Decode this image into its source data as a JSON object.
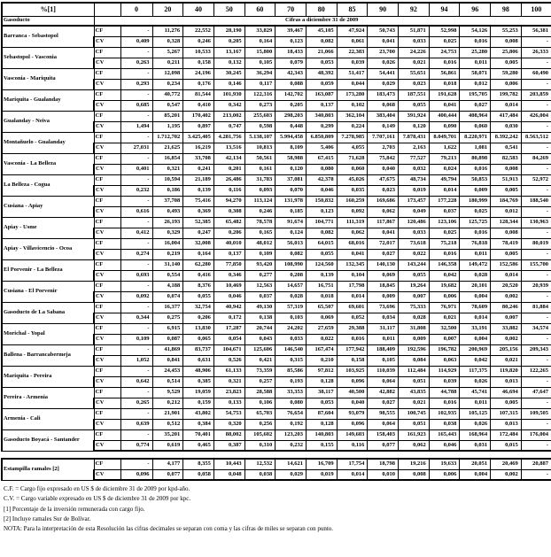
{
  "header": {
    "percent_label": "%[1]",
    "gasoducto_label": "Gasoducto",
    "cifras_label": "Cifras a diciembre 31 de 2009",
    "cf_label": "CF",
    "cv_label": "CV",
    "columns": [
      "0",
      "20",
      "40",
      "50",
      "60",
      "70",
      "80",
      "85",
      "90",
      "92",
      "94",
      "96",
      "98",
      "100"
    ]
  },
  "rows": [
    {
      "name": "Barranca - Sebastopol",
      "cf": [
        "-",
        "11,276",
        "22,552",
        "28,190",
        "33,829",
        "39,467",
        "45,105",
        "47,924",
        "50,743",
        "51,871",
        "52,998",
        "54,126",
        "55,253",
        "56,381"
      ],
      "cv": [
        "0,409",
        "0,328",
        "0,246",
        "0,205",
        "0,164",
        "0,123",
        "0,082",
        "0,061",
        "0,041",
        "0,033",
        "0,025",
        "0,016",
        "0,008",
        "-"
      ]
    },
    {
      "name": "Sebastopol - Vasconia",
      "cf": [
        "-",
        "5,267",
        "10,533",
        "13,167",
        "15,800",
        "18,433",
        "21,066",
        "22,383",
        "23,700",
        "24,226",
        "24,753",
        "25,280",
        "25,806",
        "26,333"
      ],
      "cv": [
        "0,263",
        "0,211",
        "0,158",
        "0,132",
        "0,105",
        "0,079",
        "0,053",
        "0,039",
        "0,026",
        "0,021",
        "0,016",
        "0,011",
        "0,005",
        "-"
      ]
    },
    {
      "name": "Vasconia - Mariquita",
      "cf": [
        "-",
        "12,098",
        "24,196",
        "30,245",
        "36,294",
        "42,343",
        "48,392",
        "51,417",
        "54,441",
        "55,651",
        "56,861",
        "58,071",
        "59,280",
        "60,490"
      ],
      "cv": [
        "0,293",
        "0,234",
        "0,176",
        "0,146",
        "0,117",
        "0,088",
        "0,059",
        "0,044",
        "0,029",
        "0,023",
        "0,018",
        "0,012",
        "0,006",
        "-"
      ]
    },
    {
      "name": "Mariquita - Gualanday",
      "cf": [
        "-",
        "40,772",
        "81,544",
        "101,930",
        "122,316",
        "142,702",
        "163,087",
        "173,280",
        "183,473",
        "187,551",
        "191,628",
        "195,705",
        "199,782",
        "203,859"
      ],
      "cv": [
        "0,685",
        "0,547",
        "0,410",
        "0,342",
        "0,273",
        "0,205",
        "0,137",
        "0,102",
        "0,068",
        "0,055",
        "0,041",
        "0,027",
        "0,014",
        "-"
      ]
    },
    {
      "name": "Gualanday - Neiva",
      "cf": [
        "-",
        "85,201",
        "170,402",
        "213,002",
        "255,603",
        "298,203",
        "340,803",
        "362,104",
        "383,404",
        "391,924",
        "400,444",
        "408,964",
        "417,484",
        "426,004"
      ],
      "cv": [
        "1,494",
        "1,195",
        "0,897",
        "0,747",
        "0,598",
        "0,448",
        "0,299",
        "0,224",
        "0,149",
        "0,120",
        "0,090",
        "0,060",
        "0,030",
        "-"
      ]
    },
    {
      "name": "Montañuelo - Gualanday",
      "cf": [
        "-",
        "1.712,702",
        "3.425,405",
        "4.281,756",
        "5.138,107",
        "5.994,458",
        "6.850,809",
        "7.278,985",
        "7.707,161",
        "7.878,431",
        "8.049,701",
        "8.220,971",
        "8.392,242",
        "8.563,512"
      ],
      "cv": [
        "27,031",
        "21,625",
        "16,219",
        "13,516",
        "10,813",
        "8,109",
        "5,406",
        "4,055",
        "2,703",
        "2,163",
        "1,622",
        "1,081",
        "0,541",
        "-"
      ]
    },
    {
      "name": "Vasconia - La Belleza",
      "cf": [
        "-",
        "16,854",
        "33,708",
        "42,134",
        "50,561",
        "58,988",
        "67,415",
        "71,628",
        "75,842",
        "77,527",
        "79,213",
        "80,898",
        "82,583",
        "84,269"
      ],
      "cv": [
        "0,401",
        "0,321",
        "0,241",
        "0,201",
        "0,161",
        "0,120",
        "0,080",
        "0,060",
        "0,040",
        "0,032",
        "0,024",
        "0,016",
        "0,008",
        "-"
      ]
    },
    {
      "name": "La Belleza - Cogua",
      "cf": [
        "-",
        "10,594",
        "21,189",
        "26,486",
        "31,783",
        "37,081",
        "42,378",
        "45,026",
        "47,675",
        "48,734",
        "49,794",
        "50,853",
        "51,913",
        "52,972"
      ],
      "cv": [
        "0,232",
        "0,186",
        "0,139",
        "0,116",
        "0,093",
        "0,070",
        "0,046",
        "0,035",
        "0,023",
        "0,019",
        "0,014",
        "0,009",
        "0,005",
        "-"
      ]
    },
    {
      "name": "Cusiana - Apiay",
      "cf": [
        "-",
        "37,708",
        "75,416",
        "94,270",
        "113,124",
        "131,978",
        "150,832",
        "160,259",
        "169,686",
        "173,457",
        "177,228",
        "180,999",
        "184,769",
        "188,540"
      ],
      "cv": [
        "0,616",
        "0,493",
        "0,369",
        "0,308",
        "0,246",
        "0,185",
        "0,123",
        "0,092",
        "0,062",
        "0,049",
        "0,037",
        "0,025",
        "0,012",
        "-"
      ]
    },
    {
      "name": "Apiay - Usme",
      "cf": [
        "-",
        "26,193",
        "52,385",
        "65,482",
        "78,578",
        "91,674",
        "104,771",
        "111,319",
        "117,867",
        "120,486",
        "123,106",
        "125,725",
        "128,344",
        "130,963"
      ],
      "cv": [
        "0,412",
        "0,329",
        "0,247",
        "0,206",
        "0,165",
        "0,124",
        "0,082",
        "0,062",
        "0,041",
        "0,033",
        "0,025",
        "0,016",
        "0,008",
        "-"
      ]
    },
    {
      "name": "Apiay - Villavicencio - Ocoa",
      "cf": [
        "-",
        "16,004",
        "32,008",
        "40,010",
        "48,012",
        "56,013",
        "64,015",
        "68,016",
        "72,017",
        "73,618",
        "75,218",
        "76,818",
        "78,419",
        "80,019"
      ],
      "cv": [
        "0,274",
        "0,219",
        "0,164",
        "0,137",
        "0,109",
        "0,082",
        "0,055",
        "0,041",
        "0,027",
        "0,022",
        "0,016",
        "0,011",
        "0,005",
        "-"
      ]
    },
    {
      "name": "El Porvenir - La Belleza",
      "cf": [
        "-",
        "31,140",
        "62,280",
        "77,850",
        "93,420",
        "108,990",
        "124,560",
        "132,345",
        "140,130",
        "143,244",
        "146,358",
        "149,472",
        "152,586",
        "155,700"
      ],
      "cv": [
        "0,693",
        "0,554",
        "0,416",
        "0,346",
        "0,277",
        "0,208",
        "0,139",
        "0,104",
        "0,069",
        "0,055",
        "0,042",
        "0,028",
        "0,014",
        "-"
      ]
    },
    {
      "name": "Cusiana - El Porvenir",
      "cf": [
        "-",
        "4,188",
        "8,376",
        "10,469",
        "12,563",
        "14,657",
        "16,751",
        "17,798",
        "18,845",
        "19,264",
        "19,682",
        "20,101",
        "20,520",
        "20,939"
      ],
      "cv": [
        "0,092",
        "0,074",
        "0,055",
        "0,046",
        "0,037",
        "0,028",
        "0,018",
        "0,014",
        "0,009",
        "0,007",
        "0,006",
        "0,004",
        "0,002",
        "-"
      ]
    },
    {
      "name": "Gasoducto de La Sabana",
      "cf": [
        "-",
        "16,377",
        "32,754",
        "40,942",
        "49,130",
        "57,319",
        "65,507",
        "69,601",
        "73,696",
        "75,333",
        "76,971",
        "78,609",
        "80,246",
        "81,884"
      ],
      "cv": [
        "0,344",
        "0,275",
        "0,206",
        "0,172",
        "0,138",
        "0,103",
        "0,069",
        "0,052",
        "0,034",
        "0,028",
        "0,021",
        "0,014",
        "0,007",
        "-"
      ]
    },
    {
      "name": "Morichal - Yopal",
      "cf": [
        "-",
        "6,915",
        "13,830",
        "17,287",
        "20,744",
        "24,202",
        "27,659",
        "29,388",
        "31,117",
        "31,808",
        "32,500",
        "33,191",
        "33,882",
        "34,574"
      ],
      "cv": [
        "0,109",
        "0,087",
        "0,065",
        "0,054",
        "0,043",
        "0,033",
        "0,022",
        "0,016",
        "0,011",
        "0,009",
        "0,007",
        "0,004",
        "0,002",
        "-"
      ]
    },
    {
      "name": "Ballena - Barrancabermeja",
      "cf": [
        "-",
        "41,869",
        "83,737",
        "104,671",
        "125,606",
        "146,540",
        "167,474",
        "177,942",
        "188,409",
        "192,596",
        "196,782",
        "200,969",
        "205,156",
        "209,343"
      ],
      "cv": [
        "1,052",
        "0,841",
        "0,631",
        "0,526",
        "0,421",
        "0,315",
        "0,210",
        "0,158",
        "0,105",
        "0,084",
        "0,063",
        "0,042",
        "0,021",
        "-"
      ]
    },
    {
      "name": "Mariquita - Pereira",
      "cf": [
        "-",
        "24,453",
        "48,906",
        "61,133",
        "73,359",
        "85,586",
        "97,812",
        "103,925",
        "110,039",
        "112,484",
        "114,929",
        "117,375",
        "119,820",
        "122,265"
      ],
      "cv": [
        "0,642",
        "0,514",
        "0,385",
        "0,321",
        "0,257",
        "0,193",
        "0,128",
        "0,096",
        "0,064",
        "0,051",
        "0,039",
        "0,026",
        "0,013",
        "-"
      ]
    },
    {
      "name": "Pereira - Armenia",
      "cf": [
        "-",
        "9,529",
        "19,059",
        "23,823",
        "28,588",
        "33,353",
        "38,117",
        "40,500",
        "42,882",
        "43,835",
        "44,788",
        "45,741",
        "46,694",
        "47,647"
      ],
      "cv": [
        "0,265",
        "0,212",
        "0,159",
        "0,133",
        "0,106",
        "0,080",
        "0,053",
        "0,040",
        "0,027",
        "0,021",
        "0,016",
        "0,011",
        "0,005",
        "-"
      ]
    },
    {
      "name": "Armenia - Cali",
      "cf": [
        "-",
        "21,901",
        "43,802",
        "54,753",
        "65,703",
        "76,654",
        "87,604",
        "93,079",
        "98,555",
        "100,745",
        "102,935",
        "105,125",
        "107,315",
        "109,505"
      ],
      "cv": [
        "0,639",
        "0,512",
        "0,384",
        "0,320",
        "0,256",
        "0,192",
        "0,128",
        "0,096",
        "0,064",
        "0,051",
        "0,038",
        "0,026",
        "0,013",
        "-"
      ]
    },
    {
      "name": "Gasoducto Boyacá - Santander",
      "cf": [
        "-",
        "35,201",
        "70,401",
        "88,002",
        "105,602",
        "123,203",
        "140,803",
        "149,603",
        "158,403",
        "161,923",
        "165,443",
        "168,964",
        "172,484",
        "176,004"
      ],
      "cv": [
        "0,774",
        "0,619",
        "0,465",
        "0,387",
        "0,310",
        "0,232",
        "0,155",
        "0,116",
        "0,077",
        "0,062",
        "0,046",
        "0,031",
        "0,015",
        "-"
      ]
    }
  ],
  "estampilla": {
    "name": "Estampilla ramales [2]",
    "cf": [
      "-",
      "4,177",
      "8,355",
      "10,443",
      "12,532",
      "14,621",
      "16,709",
      "17,754",
      "18,798",
      "19,216",
      "19,633",
      "20,051",
      "20,469",
      "20,887"
    ],
    "cv": [
      "0,096",
      "0,077",
      "0,058",
      "0,048",
      "0,038",
      "0,029",
      "0,019",
      "0,014",
      "0,010",
      "0,008",
      "0,006",
      "0,004",
      "0,002",
      "-"
    ]
  },
  "footnotes": [
    "C.F. = Cargo fijo expresado en US $ de diciembre 31 de 2009 por kpd-año.",
    "C.V. = Cargo variable expresado en US $ de diciembre 31 de 2009 por kpc.",
    "[1] Porcentaje de la inversión remunerada con cargo fijo.",
    "[2] Incluye ramales Sur de Bolívar.",
    "NOTA:   Para la interpretación de esta Resolución las cifras decimales se separan con coma y las cifras de miles se separan con punto."
  ]
}
